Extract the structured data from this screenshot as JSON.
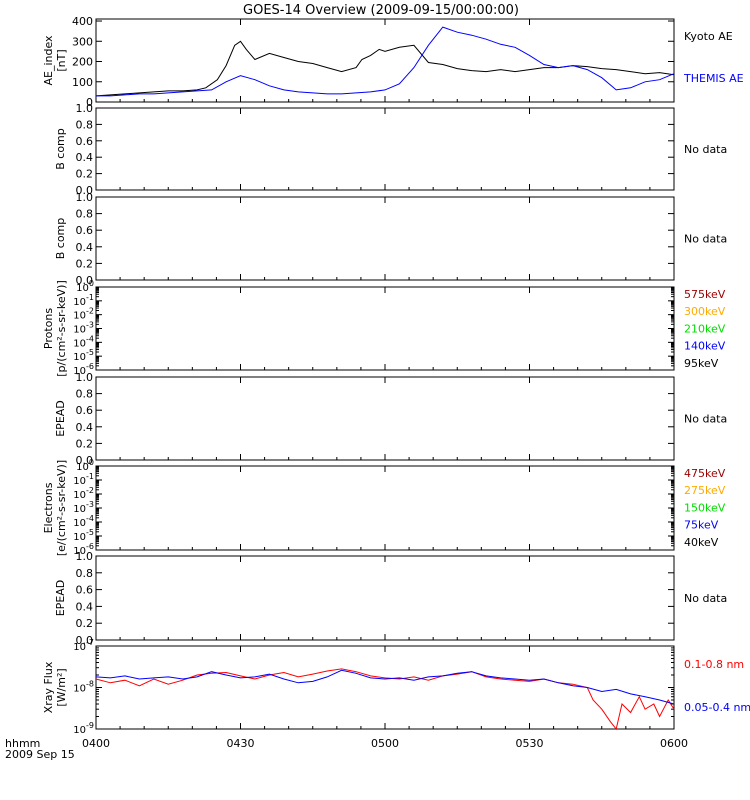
{
  "title": "GOES-14 Overview (2009-09-15/00:00:00)",
  "footer": {
    "row_label": "hhmm",
    "date_label": "2009 Sep 15"
  },
  "x_ticks": [
    "0400",
    "0430",
    "0500",
    "0530",
    "0600"
  ],
  "colors": {
    "black": "#000000",
    "blue": "#0000ff",
    "red": "#ff0000",
    "dark_red": "#990000",
    "orange": "#ffaa00",
    "green": "#00dd00"
  },
  "chart_data": [
    {
      "type": "line",
      "panel": "ae",
      "ylabel": "AE_index",
      "yunit": "[nT]",
      "ylim": [
        0,
        410
      ],
      "yticks": [
        "0",
        "100",
        "200",
        "300",
        "400"
      ],
      "x_hours": [
        4.0,
        6.0
      ],
      "series": [
        {
          "name": "Kyoto AE",
          "color": "#000000",
          "x": [
            4.0,
            4.05,
            4.1,
            4.15,
            4.2,
            4.25,
            4.3,
            4.35,
            4.38,
            4.42,
            4.45,
            4.48,
            4.5,
            4.52,
            4.55,
            4.6,
            4.65,
            4.7,
            4.75,
            4.8,
            4.85,
            4.9,
            4.92,
            4.95,
            4.98,
            5.0,
            5.05,
            5.1,
            5.15,
            5.2,
            5.25,
            5.3,
            5.35,
            5.4,
            5.45,
            5.5,
            5.55,
            5.6,
            5.65,
            5.7,
            5.75,
            5.8,
            5.85,
            5.9,
            5.95,
            6.0
          ],
          "values": [
            30,
            35,
            40,
            45,
            50,
            55,
            55,
            60,
            70,
            110,
            180,
            280,
            300,
            260,
            210,
            240,
            220,
            200,
            190,
            170,
            150,
            170,
            210,
            230,
            260,
            250,
            270,
            280,
            195,
            185,
            165,
            155,
            150,
            160,
            150,
            160,
            170,
            170,
            180,
            175,
            165,
            160,
            150,
            140,
            145,
            135
          ]
        },
        {
          "name": "THEMIS AE",
          "color": "#0000ff",
          "x": [
            4.0,
            4.05,
            4.1,
            4.15,
            4.2,
            4.25,
            4.3,
            4.35,
            4.4,
            4.45,
            4.5,
            4.55,
            4.6,
            4.65,
            4.7,
            4.75,
            4.8,
            4.85,
            4.9,
            4.95,
            5.0,
            5.05,
            5.1,
            5.15,
            5.2,
            5.25,
            5.3,
            5.35,
            5.4,
            5.45,
            5.5,
            5.55,
            5.6,
            5.65,
            5.7,
            5.75,
            5.8,
            5.85,
            5.9,
            5.95,
            6.0
          ],
          "values": [
            30,
            30,
            35,
            40,
            40,
            45,
            50,
            55,
            60,
            100,
            130,
            110,
            80,
            60,
            50,
            45,
            40,
            40,
            45,
            50,
            60,
            90,
            170,
            280,
            370,
            345,
            330,
            310,
            285,
            270,
            230,
            185,
            170,
            180,
            160,
            120,
            60,
            70,
            100,
            110,
            140
          ]
        }
      ],
      "legend": [
        "Kyoto AE",
        "THEMIS AE"
      ]
    },
    {
      "type": "line",
      "panel": "bcomp1",
      "ylabel": "B comp",
      "ylim": [
        0,
        1.0
      ],
      "yticks": [
        "0.0",
        "0.2",
        "0.4",
        "0.6",
        "0.8",
        "1.0"
      ],
      "series": [],
      "note": "No data"
    },
    {
      "type": "line",
      "panel": "bcomp2",
      "ylabel": "B comp",
      "ylim": [
        0,
        1.0
      ],
      "yticks": [
        "0.0",
        "0.2",
        "0.4",
        "0.6",
        "0.8",
        "1.0"
      ],
      "series": [],
      "note": "No data"
    },
    {
      "type": "line",
      "panel": "protons",
      "scale": "log",
      "ylabel": "Protons",
      "yunit": "[p/(cm²-s-sr-keV)]",
      "ylim": [
        1e-06,
        1
      ],
      "exponents": [
        0,
        -1,
        -2,
        -3,
        -4,
        -5,
        -6
      ],
      "series": [
        {
          "name": "575keV",
          "color": "#990000"
        },
        {
          "name": "300keV",
          "color": "#ffaa00"
        },
        {
          "name": "210keV",
          "color": "#00dd00"
        },
        {
          "name": "140keV",
          "color": "#0000ff"
        },
        {
          "name": "95keV",
          "color": "#000000"
        }
      ]
    },
    {
      "type": "line",
      "panel": "epead1",
      "ylabel": "EPEAD",
      "ylim": [
        0,
        1.0
      ],
      "yticks": [
        "0.0",
        "0.2",
        "0.4",
        "0.6",
        "0.8",
        "1.0"
      ],
      "series": [],
      "note": "No data"
    },
    {
      "type": "line",
      "panel": "electrons",
      "scale": "log",
      "ylabel": "Electrons",
      "yunit": "[e/(cm²-s-sr-keV)]",
      "ylim": [
        1e-06,
        1
      ],
      "exponents": [
        0,
        -1,
        -2,
        -3,
        -4,
        -5,
        -6
      ],
      "series": [
        {
          "name": "475keV",
          "color": "#990000"
        },
        {
          "name": "275keV",
          "color": "#ffaa00"
        },
        {
          "name": "150keV",
          "color": "#00dd00"
        },
        {
          "name": "75keV",
          "color": "#0000ff"
        },
        {
          "name": "40keV",
          "color": "#000000"
        }
      ]
    },
    {
      "type": "line",
      "panel": "epead2",
      "ylabel": "EPEAD",
      "ylim": [
        0,
        1.0
      ],
      "yticks": [
        "0.0",
        "0.2",
        "0.4",
        "0.6",
        "0.8",
        "1.0"
      ],
      "series": [],
      "note": "No data"
    },
    {
      "type": "line",
      "panel": "xray",
      "scale": "log",
      "ylabel": "Xray Flux",
      "yunit": "[W/m²]",
      "ylim": [
        1e-09,
        1e-07
      ],
      "exponents": [
        -7,
        -8,
        -9
      ],
      "series": [
        {
          "name": "0.1-0.8 nm",
          "color": "#ff0000",
          "x": [
            4.0,
            4.05,
            4.1,
            4.15,
            4.2,
            4.25,
            4.3,
            4.35,
            4.4,
            4.45,
            4.5,
            4.55,
            4.6,
            4.65,
            4.7,
            4.75,
            4.8,
            4.85,
            4.9,
            4.95,
            5.0,
            5.05,
            5.1,
            5.15,
            5.2,
            5.25,
            5.3,
            5.35,
            5.4,
            5.45,
            5.5,
            5.55,
            5.6,
            5.65,
            5.7,
            5.72,
            5.75,
            5.78,
            5.8,
            5.82,
            5.85,
            5.88,
            5.9,
            5.93,
            5.95,
            5.98,
            6.0
          ],
          "values": [
            1.6e-08,
            1.3e-08,
            1.5e-08,
            1.1e-08,
            1.6e-08,
            1.2e-08,
            1.5e-08,
            2e-08,
            2.2e-08,
            2.3e-08,
            1.9e-08,
            1.6e-08,
            2e-08,
            2.3e-08,
            1.8e-08,
            2.1e-08,
            2.5e-08,
            2.8e-08,
            2.4e-08,
            1.9e-08,
            1.7e-08,
            1.6e-08,
            1.8e-08,
            1.5e-08,
            1.9e-08,
            2.1e-08,
            2.4e-08,
            1.8e-08,
            1.6e-08,
            1.5e-08,
            1.4e-08,
            1.6e-08,
            1.3e-08,
            1.2e-08,
            1e-08,
            5e-09,
            3e-09,
            1.5e-09,
            1e-09,
            4e-09,
            2.5e-09,
            6e-09,
            3e-09,
            4e-09,
            2e-09,
            5e-09,
            3e-09
          ]
        },
        {
          "name": "0.05-0.4 nm",
          "color": "#0000ff",
          "x": [
            4.0,
            4.05,
            4.1,
            4.15,
            4.2,
            4.25,
            4.3,
            4.35,
            4.4,
            4.45,
            4.5,
            4.55,
            4.6,
            4.65,
            4.7,
            4.75,
            4.8,
            4.85,
            4.9,
            4.95,
            5.0,
            5.05,
            5.1,
            5.15,
            5.2,
            5.25,
            5.3,
            5.35,
            5.4,
            5.45,
            5.5,
            5.55,
            5.6,
            5.65,
            5.7,
            5.75,
            5.8,
            5.85,
            5.9,
            5.95,
            6.0
          ],
          "values": [
            1.8e-08,
            1.7e-08,
            1.9e-08,
            1.6e-08,
            1.7e-08,
            1.8e-08,
            1.6e-08,
            1.8e-08,
            2.4e-08,
            2e-08,
            1.7e-08,
            1.8e-08,
            2.1e-08,
            1.6e-08,
            1.3e-08,
            1.4e-08,
            1.8e-08,
            2.6e-08,
            2.2e-08,
            1.7e-08,
            1.6e-08,
            1.7e-08,
            1.5e-08,
            1.8e-08,
            1.9e-08,
            2.2e-08,
            2.4e-08,
            1.9e-08,
            1.7e-08,
            1.6e-08,
            1.5e-08,
            1.6e-08,
            1.3e-08,
            1.1e-08,
            1e-08,
            8e-09,
            9e-09,
            7e-09,
            6e-09,
            5e-09,
            4e-09
          ]
        }
      ]
    }
  ]
}
